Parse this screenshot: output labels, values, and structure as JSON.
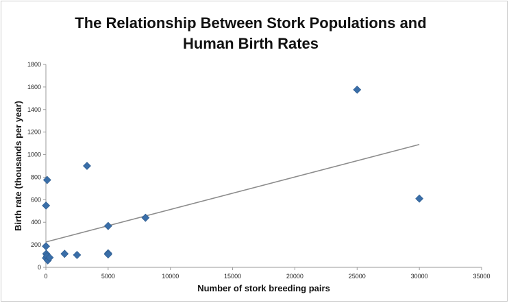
{
  "chart_data": {
    "type": "scatter",
    "title_lines": [
      "The Relationship Between Stork Populations and",
      "Human Birth Rates"
    ],
    "xlabel": "Number of stork breeding pairs",
    "ylabel": "Birth rate (thousands per year)",
    "xlim": [
      0,
      35000
    ],
    "ylim": [
      0,
      1800
    ],
    "x_ticks": [
      "0",
      "5000",
      "10000",
      "15000",
      "20000",
      "25000",
      "30000",
      "35000"
    ],
    "y_ticks": [
      "0",
      "200",
      "400",
      "600",
      "800",
      "1000",
      "1200",
      "1400",
      "1600",
      "1800"
    ],
    "grid": false,
    "legend": "none",
    "marker": "diamond",
    "marker_color": "#3a6ea8",
    "trendline_color": "#8c8c8c",
    "points": [
      {
        "x": 1,
        "y": 83
      },
      {
        "x": 5,
        "y": 187
      },
      {
        "x": 9,
        "y": 548
      },
      {
        "x": 100,
        "y": 775
      },
      {
        "x": 30,
        "y": 120
      },
      {
        "x": 90,
        "y": 100
      },
      {
        "x": 150,
        "y": 62
      },
      {
        "x": 300,
        "y": 87
      },
      {
        "x": 1500,
        "y": 120
      },
      {
        "x": 2500,
        "y": 110
      },
      {
        "x": 3300,
        "y": 900
      },
      {
        "x": 5000,
        "y": 367
      },
      {
        "x": 5000,
        "y": 125
      },
      {
        "x": 5000,
        "y": 115
      },
      {
        "x": 8000,
        "y": 440
      },
      {
        "x": 25000,
        "y": 1576
      },
      {
        "x": 30000,
        "y": 610
      }
    ],
    "trendline": {
      "x": [
        0,
        30000
      ],
      "y": [
        225,
        1090
      ]
    }
  }
}
